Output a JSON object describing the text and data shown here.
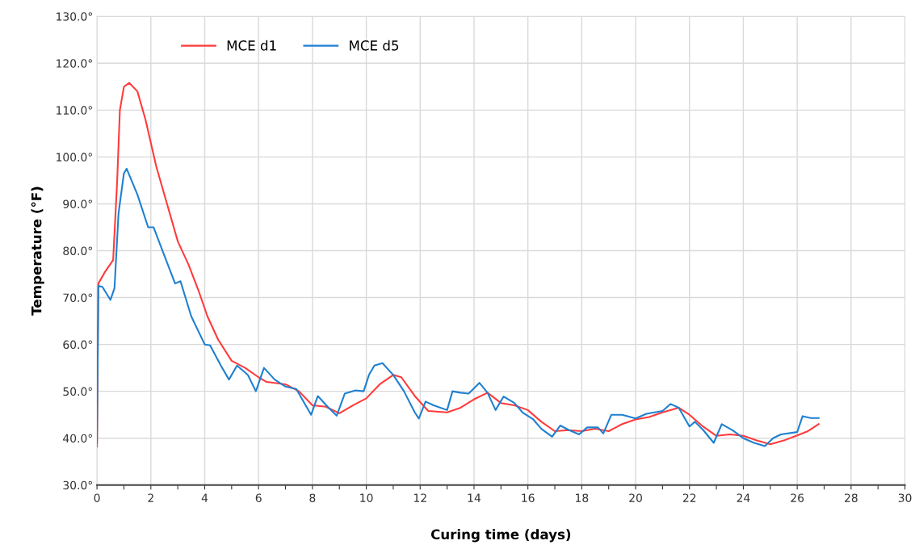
{
  "chart_data": {
    "type": "line",
    "xlabel": "Curing time (days)",
    "ylabel": "Temperature (°F)",
    "xlim": [
      0,
      30
    ],
    "xticks": [
      0,
      {
        "value": 1,
        "label": null
      },
      2,
      {
        "value": 3,
        "label": null
      },
      4,
      {
        "value": 5,
        "label": null
      },
      6,
      {
        "value": 7,
        "label": null
      },
      8,
      {
        "value": 9,
        "label": null
      },
      10,
      {
        "value": 11,
        "label": null
      },
      12,
      {
        "value": 13,
        "label": null
      },
      14,
      {
        "value": 15,
        "label": null
      },
      16,
      {
        "value": 17,
        "label": null
      },
      18,
      {
        "value": 19,
        "label": null
      },
      20,
      {
        "value": 21,
        "label": null
      },
      22,
      {
        "value": 23,
        "label": null
      },
      24,
      {
        "value": 25,
        "label": null
      },
      26,
      {
        "value": 27,
        "label": null
      },
      28,
      {
        "value": 29,
        "label": null
      },
      30
    ],
    "ylim": [
      30,
      130
    ],
    "yticks": [
      {
        "value": 30,
        "label": "30.0°"
      },
      {
        "value": 40,
        "label": "40.0°"
      },
      {
        "value": 50,
        "label": "50.0°"
      },
      {
        "value": 60,
        "label": "60.0°"
      },
      {
        "value": 70,
        "label": "70.0°"
      },
      {
        "value": 80,
        "label": "80.0°"
      },
      {
        "value": 90,
        "label": "90.0°"
      },
      {
        "value": 100,
        "label": "100.0°"
      },
      {
        "value": 110,
        "label": "110.0°"
      },
      {
        "value": 120,
        "label": "120.0°"
      },
      {
        "value": 130,
        "label": "130.0°"
      }
    ],
    "grid": true,
    "legend": "top left",
    "marker": "none",
    "line_style": "solid",
    "series": [
      {
        "name": "MCE d1",
        "color": "#ff3b3b",
        "x": [
          0,
          0.05,
          0.3,
          0.6,
          0.75,
          0.85,
          1.0,
          1.2,
          1.5,
          1.8,
          2.2,
          2.6,
          3.0,
          3.4,
          3.8,
          4.1,
          4.5,
          5.0,
          5.5,
          6.0,
          6.3,
          7.0,
          7.5,
          8.0,
          8.5,
          9.0,
          9.5,
          10.0,
          10.5,
          11.0,
          11.3,
          11.8,
          12.3,
          13.0,
          13.5,
          14.0,
          14.5,
          15.0,
          15.5,
          16.0,
          16.5,
          17.0,
          17.5,
          18.0,
          18.5,
          19.0,
          19.5,
          20.0,
          20.5,
          21.0,
          21.6,
          22.0,
          22.5,
          23.0,
          23.5,
          24.0,
          24.5,
          25.0,
          25.5,
          26.0,
          26.4,
          26.8
        ],
        "values": [
          38.2,
          73,
          75.5,
          78,
          95,
          110,
          115,
          115.8,
          114,
          108,
          98,
          90,
          82,
          77,
          71,
          66,
          61,
          56.5,
          55,
          53,
          52,
          51.5,
          50,
          47,
          46.7,
          45.3,
          47,
          48.5,
          51.5,
          53.5,
          53,
          49,
          45.8,
          45.5,
          46.5,
          48.3,
          49.7,
          47.5,
          47,
          46,
          43.5,
          41.5,
          41.7,
          41.5,
          42,
          41.5,
          43,
          44,
          44.5,
          45.5,
          46.5,
          45,
          42.5,
          40.5,
          40.8,
          40.5,
          39.5,
          38.7,
          39.5,
          40.6,
          41.5,
          43
        ]
      },
      {
        "name": "MCE d5",
        "color": "#1f80d0",
        "x": [
          0,
          0.05,
          0.2,
          0.5,
          0.65,
          0.8,
          1.0,
          1.1,
          1.5,
          1.9,
          2.1,
          2.5,
          2.9,
          3.1,
          3.5,
          4.0,
          4.2,
          4.6,
          4.9,
          5.2,
          5.6,
          5.9,
          6.2,
          6.6,
          7.0,
          7.4,
          7.8,
          7.95,
          8.2,
          8.6,
          8.9,
          9.2,
          9.6,
          9.9,
          10.1,
          10.3,
          10.6,
          11.0,
          11.4,
          11.8,
          11.95,
          12.2,
          12.5,
          13.0,
          13.2,
          13.5,
          13.8,
          14.2,
          14.5,
          14.8,
          15.1,
          15.5,
          15.8,
          16.2,
          16.5,
          16.9,
          17.2,
          17.5,
          17.9,
          18.2,
          18.6,
          18.8,
          19.1,
          19.5,
          20.0,
          20.4,
          21.0,
          21.3,
          21.6,
          22.0,
          22.2,
          22.5,
          22.9,
          23.2,
          23.6,
          24.0,
          24.4,
          24.8,
          25.1,
          25.4,
          26.0,
          26.2,
          26.5,
          26.8
        ],
        "values": [
          39,
          72.5,
          72.3,
          69.5,
          72,
          88,
          96.5,
          97.5,
          92,
          85,
          85,
          79,
          73,
          73.5,
          66,
          60,
          59.8,
          55.5,
          52.5,
          55.5,
          53.5,
          50,
          55,
          52.5,
          51,
          50.5,
          46.5,
          45,
          49,
          46.5,
          44.8,
          49.5,
          50.2,
          50,
          53.5,
          55.5,
          56,
          53.5,
          50,
          45.5,
          44.2,
          47.8,
          47,
          46,
          50,
          49.7,
          49.5,
          51.8,
          49.7,
          46,
          48.9,
          47.5,
          45.5,
          44,
          42,
          40.3,
          42.7,
          41.8,
          40.8,
          42.3,
          42.3,
          41,
          45,
          45,
          44.2,
          45.2,
          45.8,
          47.3,
          46.5,
          42.5,
          43.5,
          41.8,
          39,
          43,
          41.7,
          40,
          39,
          38.3,
          40,
          40.8,
          41.3,
          44.7,
          44.3,
          44.3
        ]
      }
    ]
  }
}
